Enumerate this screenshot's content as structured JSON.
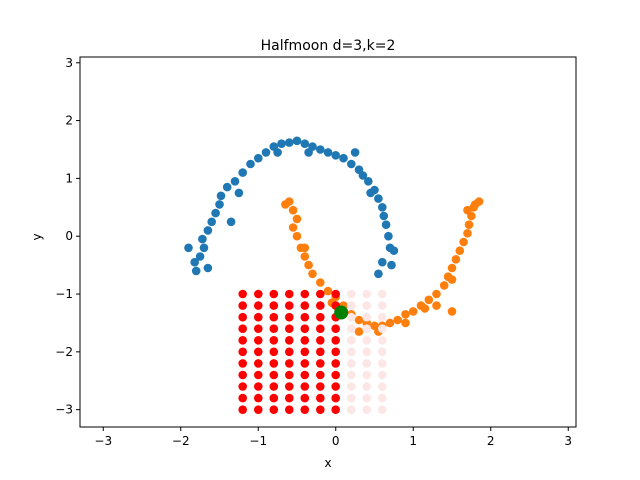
{
  "chart_data": {
    "type": "scatter",
    "title": "Halfmoon d=3,k=2",
    "xlabel": "x",
    "ylabel": "y",
    "xlim": [
      -3.3,
      3.1
    ],
    "ylim": [
      -3.3,
      3.1
    ],
    "xticks": [
      -3,
      -2,
      -1,
      0,
      1,
      2,
      3
    ],
    "yticks": [
      -3,
      -2,
      -1,
      0,
      1,
      2,
      3
    ],
    "xtick_labels": [
      "−3",
      "−2",
      "−1",
      "0",
      "1",
      "2",
      "3"
    ],
    "ytick_labels": [
      "−3",
      "−2",
      "−1",
      "0",
      "1",
      "2",
      "3"
    ],
    "grid": false,
    "series": [
      {
        "color": "#1f77b4",
        "points": [
          [
            -1.8,
            -0.6
          ],
          [
            -1.82,
            -0.45
          ],
          [
            -1.75,
            -0.35
          ],
          [
            -1.7,
            -0.2
          ],
          [
            -1.72,
            -0.05
          ],
          [
            -1.65,
            0.1
          ],
          [
            -1.6,
            0.25
          ],
          [
            -1.55,
            0.4
          ],
          [
            -1.5,
            0.55
          ],
          [
            -1.48,
            0.7
          ],
          [
            -1.4,
            0.85
          ],
          [
            -1.3,
            0.95
          ],
          [
            -1.2,
            1.1
          ],
          [
            -1.1,
            1.25
          ],
          [
            -1.0,
            1.35
          ],
          [
            -0.9,
            1.45
          ],
          [
            -0.8,
            1.55
          ],
          [
            -0.7,
            1.6
          ],
          [
            -0.6,
            1.62
          ],
          [
            -0.5,
            1.65
          ],
          [
            -0.4,
            1.6
          ],
          [
            -0.3,
            1.55
          ],
          [
            -0.2,
            1.5
          ],
          [
            -0.1,
            1.45
          ],
          [
            0.0,
            1.4
          ],
          [
            0.1,
            1.35
          ],
          [
            0.2,
            1.25
          ],
          [
            0.3,
            1.15
          ],
          [
            0.35,
            1.05
          ],
          [
            0.42,
            0.95
          ],
          [
            0.5,
            0.8
          ],
          [
            0.55,
            0.65
          ],
          [
            0.6,
            0.5
          ],
          [
            0.62,
            0.35
          ],
          [
            0.65,
            0.2
          ],
          [
            0.68,
            0.0
          ],
          [
            0.7,
            -0.2
          ],
          [
            0.6,
            -0.45
          ],
          [
            0.72,
            -0.5
          ],
          [
            0.55,
            -0.65
          ],
          [
            -1.9,
            -0.2
          ],
          [
            -1.65,
            -0.55
          ],
          [
            -1.35,
            0.25
          ],
          [
            -1.25,
            0.75
          ],
          [
            -0.75,
            1.45
          ],
          [
            -0.35,
            1.45
          ],
          [
            0.25,
            1.45
          ],
          [
            0.45,
            0.75
          ],
          [
            0.75,
            -0.25
          ]
        ]
      },
      {
        "color": "#ff7f0e",
        "points": [
          [
            -0.6,
            0.6
          ],
          [
            -0.55,
            0.45
          ],
          [
            -0.5,
            0.3
          ],
          [
            -0.55,
            0.15
          ],
          [
            -0.5,
            0.0
          ],
          [
            -0.45,
            -0.2
          ],
          [
            -0.4,
            -0.35
          ],
          [
            -0.35,
            -0.5
          ],
          [
            -0.3,
            -0.65
          ],
          [
            -0.2,
            -0.8
          ],
          [
            -0.1,
            -0.95
          ],
          [
            0.0,
            -1.05
          ],
          [
            0.1,
            -1.2
          ],
          [
            0.2,
            -1.35
          ],
          [
            0.3,
            -1.45
          ],
          [
            0.4,
            -1.5
          ],
          [
            0.5,
            -1.55
          ],
          [
            0.6,
            -1.55
          ],
          [
            0.7,
            -1.5
          ],
          [
            0.8,
            -1.45
          ],
          [
            0.9,
            -1.35
          ],
          [
            1.0,
            -1.3
          ],
          [
            1.1,
            -1.2
          ],
          [
            1.2,
            -1.1
          ],
          [
            1.3,
            -1.0
          ],
          [
            1.4,
            -0.85
          ],
          [
            1.45,
            -0.7
          ],
          [
            1.5,
            -0.55
          ],
          [
            1.55,
            -0.4
          ],
          [
            1.6,
            -0.25
          ],
          [
            1.65,
            -0.1
          ],
          [
            1.7,
            0.05
          ],
          [
            1.72,
            0.2
          ],
          [
            1.75,
            0.35
          ],
          [
            1.78,
            0.5
          ],
          [
            1.8,
            0.55
          ],
          [
            1.7,
            0.45
          ],
          [
            1.5,
            -0.75
          ],
          [
            1.15,
            -1.25
          ],
          [
            0.05,
            -1.25
          ],
          [
            -0.05,
            -1.15
          ],
          [
            0.3,
            -1.65
          ],
          [
            0.55,
            -1.65
          ],
          [
            1.5,
            -1.3
          ],
          [
            1.85,
            0.6
          ],
          [
            -0.65,
            0.55
          ],
          [
            -0.4,
            -0.2
          ],
          [
            0.9,
            -1.5
          ],
          [
            1.3,
            -1.2
          ]
        ]
      },
      {
        "color": "#ff0000",
        "points": [
          [
            -1.2,
            -1.0
          ],
          [
            -1.0,
            -1.0
          ],
          [
            -0.8,
            -1.0
          ],
          [
            -0.6,
            -1.0
          ],
          [
            -0.4,
            -1.0
          ],
          [
            -0.2,
            -1.0
          ],
          [
            0.0,
            -1.0
          ],
          [
            -1.2,
            -1.2
          ],
          [
            -1.0,
            -1.2
          ],
          [
            -0.8,
            -1.2
          ],
          [
            -0.6,
            -1.2
          ],
          [
            -0.4,
            -1.2
          ],
          [
            -0.2,
            -1.2
          ],
          [
            0.0,
            -1.2
          ],
          [
            -1.2,
            -1.4
          ],
          [
            -1.0,
            -1.4
          ],
          [
            -0.8,
            -1.4
          ],
          [
            -0.6,
            -1.4
          ],
          [
            -0.4,
            -1.4
          ],
          [
            -0.2,
            -1.4
          ],
          [
            0.0,
            -1.4
          ],
          [
            -1.2,
            -1.6
          ],
          [
            -1.0,
            -1.6
          ],
          [
            -0.8,
            -1.6
          ],
          [
            -0.6,
            -1.6
          ],
          [
            -0.4,
            -1.6
          ],
          [
            -0.2,
            -1.6
          ],
          [
            0.0,
            -1.6
          ],
          [
            -1.2,
            -1.8
          ],
          [
            -1.0,
            -1.8
          ],
          [
            -0.8,
            -1.8
          ],
          [
            -0.6,
            -1.8
          ],
          [
            -0.4,
            -1.8
          ],
          [
            -0.2,
            -1.8
          ],
          [
            0.0,
            -1.8
          ],
          [
            -1.2,
            -2.0
          ],
          [
            -1.0,
            -2.0
          ],
          [
            -0.8,
            -2.0
          ],
          [
            -0.6,
            -2.0
          ],
          [
            -0.4,
            -2.0
          ],
          [
            -0.2,
            -2.0
          ],
          [
            0.0,
            -2.0
          ],
          [
            -1.2,
            -2.2
          ],
          [
            -1.0,
            -2.2
          ],
          [
            -0.8,
            -2.2
          ],
          [
            -0.6,
            -2.2
          ],
          [
            -0.4,
            -2.2
          ],
          [
            -0.2,
            -2.2
          ],
          [
            0.0,
            -2.2
          ],
          [
            -1.2,
            -2.4
          ],
          [
            -1.0,
            -2.4
          ],
          [
            -0.8,
            -2.4
          ],
          [
            -0.6,
            -2.4
          ],
          [
            -0.4,
            -2.4
          ],
          [
            -0.2,
            -2.4
          ],
          [
            0.0,
            -2.4
          ],
          [
            -1.2,
            -2.6
          ],
          [
            -1.0,
            -2.6
          ],
          [
            -0.8,
            -2.6
          ],
          [
            -0.6,
            -2.6
          ],
          [
            -0.4,
            -2.6
          ],
          [
            -0.2,
            -2.6
          ],
          [
            0.0,
            -2.6
          ],
          [
            -1.2,
            -2.8
          ],
          [
            -1.0,
            -2.8
          ],
          [
            -0.8,
            -2.8
          ],
          [
            -0.6,
            -2.8
          ],
          [
            -0.4,
            -2.8
          ],
          [
            -0.2,
            -2.8
          ],
          [
            0.0,
            -2.8
          ],
          [
            -1.2,
            -3.0
          ],
          [
            -1.0,
            -3.0
          ],
          [
            -0.8,
            -3.0
          ],
          [
            -0.6,
            -3.0
          ],
          [
            -0.4,
            -3.0
          ],
          [
            -0.2,
            -3.0
          ],
          [
            0.0,
            -3.0
          ]
        ]
      },
      {
        "color": "#fde6e6",
        "points": [
          [
            0.2,
            -1.0
          ],
          [
            0.4,
            -1.0
          ],
          [
            0.6,
            -1.0
          ],
          [
            0.2,
            -1.2
          ],
          [
            0.4,
            -1.2
          ],
          [
            0.6,
            -1.2
          ],
          [
            0.2,
            -1.4
          ],
          [
            0.4,
            -1.4
          ],
          [
            0.6,
            -1.4
          ],
          [
            0.2,
            -1.6
          ],
          [
            0.4,
            -1.6
          ],
          [
            0.6,
            -1.6
          ],
          [
            0.2,
            -1.8
          ],
          [
            0.4,
            -1.8
          ],
          [
            0.6,
            -1.8
          ],
          [
            0.2,
            -2.0
          ],
          [
            0.4,
            -2.0
          ],
          [
            0.6,
            -2.0
          ],
          [
            0.2,
            -2.2
          ],
          [
            0.4,
            -2.2
          ],
          [
            0.6,
            -2.2
          ],
          [
            0.2,
            -2.4
          ],
          [
            0.4,
            -2.4
          ],
          [
            0.6,
            -2.4
          ],
          [
            0.2,
            -2.6
          ],
          [
            0.4,
            -2.6
          ],
          [
            0.6,
            -2.6
          ],
          [
            0.2,
            -2.8
          ],
          [
            0.4,
            -2.8
          ],
          [
            0.6,
            -2.8
          ],
          [
            0.2,
            -3.0
          ],
          [
            0.4,
            -3.0
          ],
          [
            0.6,
            -3.0
          ]
        ]
      },
      {
        "color": "#008000",
        "marker": "large",
        "points": [
          [
            0.07,
            -1.32
          ]
        ]
      }
    ]
  }
}
